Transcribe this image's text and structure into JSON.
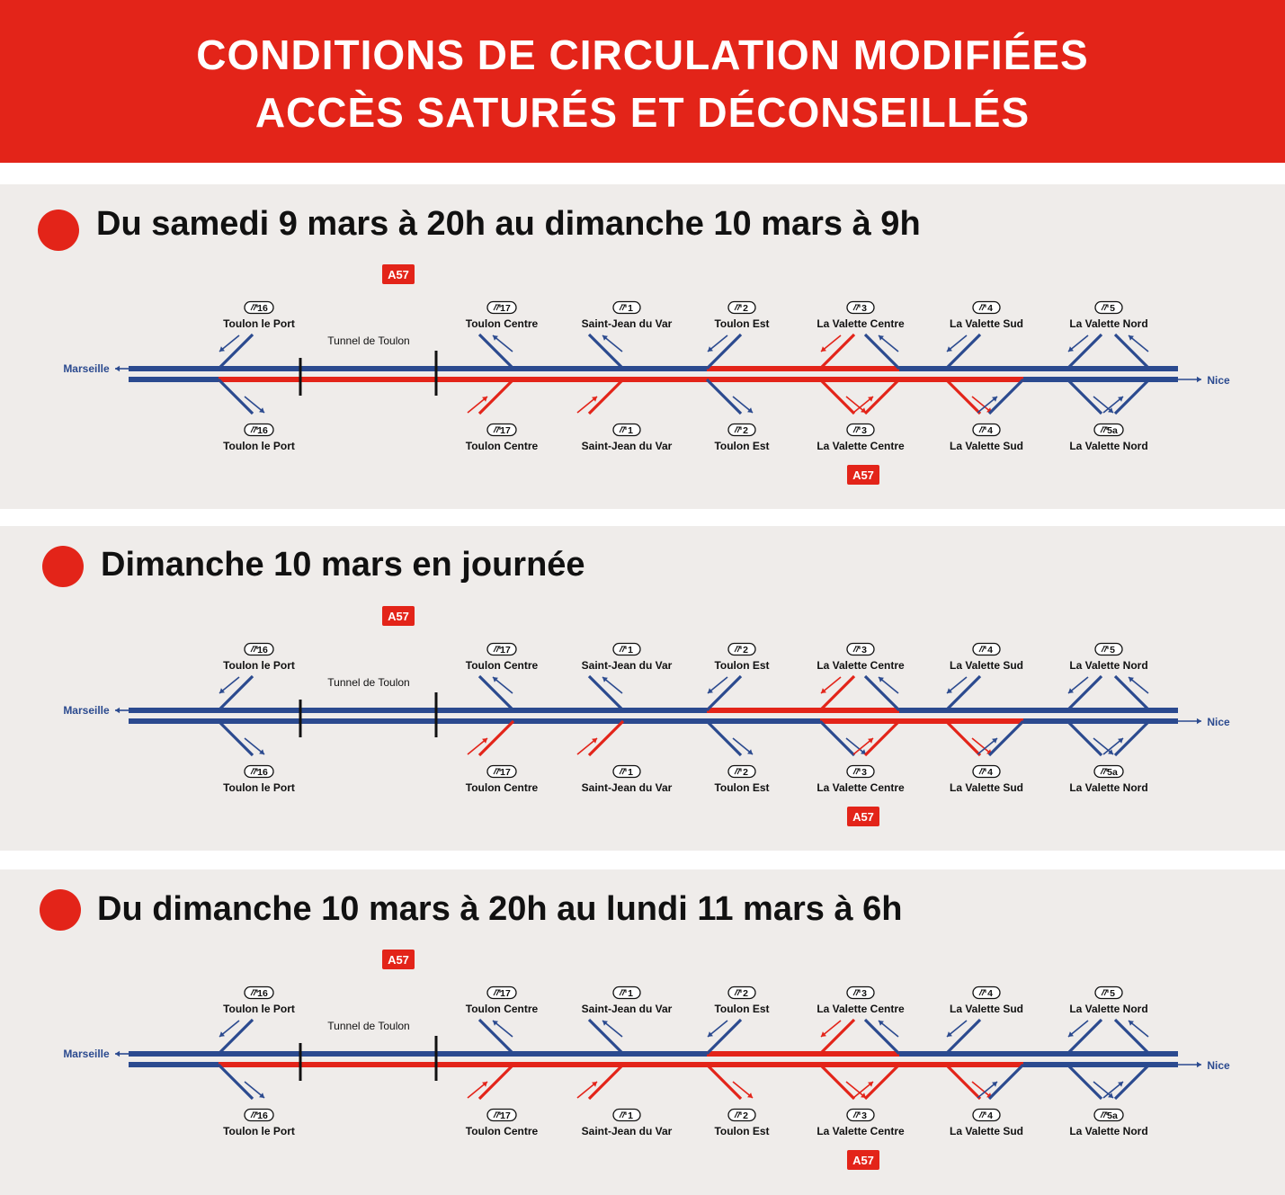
{
  "header": {
    "line1": "CONDITIONS DE CIRCULATION MODIFIÉES",
    "line2": "ACCÈS SATURÉS ET DÉCONSEILLÉS"
  },
  "colors": {
    "red": "#e32419",
    "blue": "#2b4a8f",
    "bg": "#efecea"
  },
  "labels": {
    "west": "Marseille",
    "east": "Nice",
    "tunnel": "Tunnel de Toulon",
    "a57": "A57",
    "exit_icon": "exit-icon"
  },
  "exits_top": [
    {
      "no": "16",
      "name": "Toulon le Port"
    },
    {
      "no": "17",
      "name": "Toulon Centre"
    },
    {
      "no": "1",
      "name": "Saint-Jean du Var"
    },
    {
      "no": "2",
      "name": "Toulon Est"
    },
    {
      "no": "3",
      "name": "La Valette Centre"
    },
    {
      "no": "4",
      "name": "La Valette Sud"
    },
    {
      "no": "5",
      "name": "La Valette Nord"
    }
  ],
  "exits_bottom": [
    {
      "no": "16",
      "name": "Toulon le Port"
    },
    {
      "no": "17",
      "name": "Toulon Centre"
    },
    {
      "no": "1",
      "name": "Saint-Jean du Var"
    },
    {
      "no": "2",
      "name": "Toulon Est"
    },
    {
      "no": "3",
      "name": "La Valette Centre"
    },
    {
      "no": "4",
      "name": "La Valette Sud"
    },
    {
      "no": "5a",
      "name": "La Valette Nord"
    }
  ],
  "sections": [
    {
      "title": "Du samedi 9 mars à 20h au dimanche 10 mars à 9h",
      "saturated_top_carriageway": [
        "2-3"
      ],
      "saturated_bottom_carriageway": [
        "16-4"
      ],
      "ramps": {
        "top": [
          "normal",
          "normal",
          "normal",
          "normal",
          "saturated",
          "normal",
          "normal",
          "normal"
        ],
        "bottom": [
          "normal",
          "saturated",
          "saturated",
          "normal",
          "saturated",
          "saturated",
          "saturated",
          "normal",
          "normal",
          "normal"
        ]
      }
    },
    {
      "title": "Dimanche 10 mars en journée",
      "saturated_top_carriageway": [
        "2-3"
      ],
      "saturated_bottom_carriageway": [
        "3-4"
      ],
      "ramps": {
        "top": [
          "normal",
          "normal",
          "normal",
          "normal",
          "saturated",
          "normal",
          "normal",
          "normal"
        ],
        "bottom": [
          "normal",
          "saturated",
          "saturated",
          "normal",
          "normal",
          "saturated",
          "saturated",
          "normal",
          "normal",
          "normal"
        ]
      }
    },
    {
      "title": "Du dimanche 10 mars à 20h au lundi 11 mars à 6h",
      "saturated_top_carriageway": [
        "2-3"
      ],
      "saturated_bottom_carriageway": [
        "16-4"
      ],
      "ramps": {
        "top": [
          "normal",
          "normal",
          "normal",
          "normal",
          "saturated",
          "normal",
          "normal",
          "normal"
        ],
        "bottom": [
          "normal",
          "saturated",
          "saturated",
          "saturated",
          "saturated",
          "saturated",
          "saturated",
          "normal",
          "normal",
          "normal"
        ]
      }
    }
  ]
}
